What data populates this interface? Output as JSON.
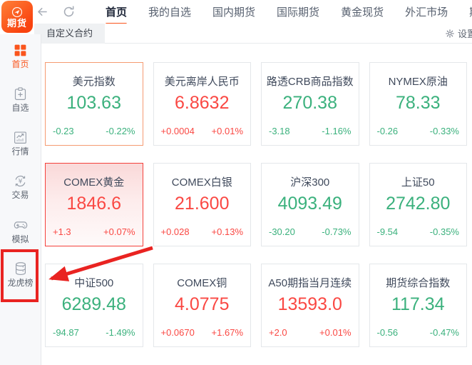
{
  "app": {
    "logo_text": "期货"
  },
  "header": {
    "nav_tabs": [
      {
        "label": "首页",
        "active": true
      },
      {
        "label": "我的自选"
      },
      {
        "label": "国内期货"
      },
      {
        "label": "国际期货"
      },
      {
        "label": "黄金现货"
      },
      {
        "label": "外汇市场"
      },
      {
        "label": "期"
      }
    ],
    "subtab": "自定义合约",
    "settings_label": "设置"
  },
  "sidebar": {
    "items": [
      {
        "label": "首页",
        "icon": "home-grid-icon",
        "active": true
      },
      {
        "label": "自选",
        "icon": "watchlist-add-icon"
      },
      {
        "label": "行情",
        "icon": "market-chart-icon"
      },
      {
        "label": "交易",
        "icon": "trade-yuan-icon"
      },
      {
        "label": "模拟",
        "icon": "simulation-gamepad-icon"
      },
      {
        "label": "龙虎榜",
        "icon": "leaderboard-database-icon",
        "annotated": true
      }
    ]
  },
  "quotes": {
    "cards": [
      {
        "name": "美元指数",
        "price": "103.63",
        "change": "-0.23",
        "pct": "-0.22%",
        "dir": "down",
        "highlight": "orange"
      },
      {
        "name": "美元离岸人民币",
        "price": "6.8632",
        "change": "+0.0004",
        "pct": "+0.01%",
        "dir": "up"
      },
      {
        "name": "路透CRB商品指数",
        "price": "270.38",
        "change": "-3.18",
        "pct": "-1.16%",
        "dir": "down"
      },
      {
        "name": "NYMEX原油",
        "price": "78.33",
        "change": "-0.26",
        "pct": "-0.33%",
        "dir": "down"
      },
      {
        "name": "COMEX黄金",
        "price": "1846.6",
        "change": "+1.3",
        "pct": "+0.07%",
        "dir": "up",
        "highlight": "red"
      },
      {
        "name": "COMEX白银",
        "price": "21.600",
        "change": "+0.028",
        "pct": "+0.13%",
        "dir": "up"
      },
      {
        "name": "沪深300",
        "price": "4093.49",
        "change": "-30.20",
        "pct": "-0.73%",
        "dir": "down"
      },
      {
        "name": "上证50",
        "price": "2742.80",
        "change": "-9.54",
        "pct": "-0.35%",
        "dir": "down"
      },
      {
        "name": "中证500",
        "price": "6289.48",
        "change": "-94.87",
        "pct": "-1.49%",
        "dir": "down"
      },
      {
        "name": "COMEX铜",
        "price": "4.0775",
        "change": "+0.0670",
        "pct": "+1.67%",
        "dir": "up"
      },
      {
        "name": "A50期指当月连续",
        "price": "13593.0",
        "change": "+2.0",
        "pct": "+0.01%",
        "dir": "up"
      },
      {
        "name": "期货综合指数",
        "price": "117.34",
        "change": "-0.56",
        "pct": "-0.47%",
        "dir": "down"
      }
    ]
  },
  "annotation": {
    "target": "龙虎榜",
    "shape": "red-box-with-arrow"
  },
  "colors": {
    "up_red": "#fa4843",
    "down_green": "#3bb17d",
    "accent_orange": "#fa551d",
    "annotation_red": "#e92321",
    "selected_card_border": "#f4413c",
    "hover_card_border": "#f59b72"
  }
}
